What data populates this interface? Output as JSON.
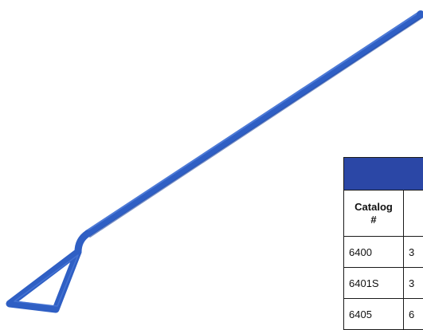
{
  "product": {
    "color": "#2f5fc4",
    "highlight": "#5a86e0",
    "shadow": "#1d44a0"
  },
  "table": {
    "band_color": "#2b47a6",
    "header": {
      "col1": "Catalog\n#",
      "col2": ""
    },
    "rows": [
      {
        "catalog": "6400",
        "next": "3"
      },
      {
        "catalog": "6401S",
        "next": "3"
      },
      {
        "catalog": "6405",
        "next": "6"
      }
    ]
  }
}
